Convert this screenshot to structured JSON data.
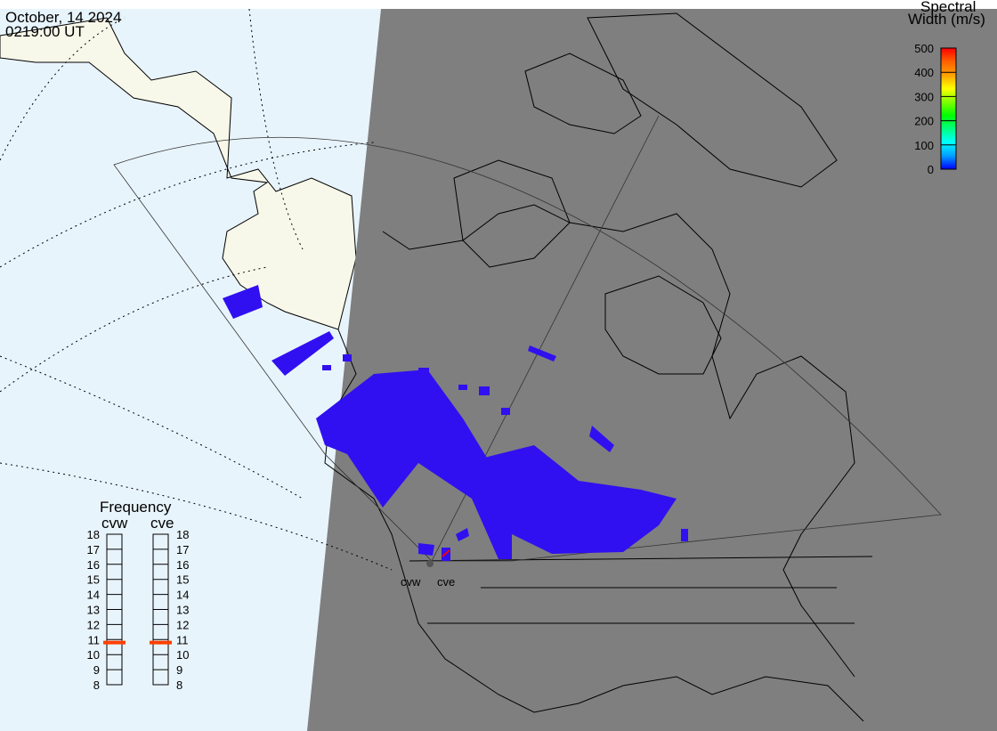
{
  "header": {
    "date": "October, 14 2024",
    "time": "0219:00 UT"
  },
  "colorbar": {
    "title_line1": "Spectral",
    "title_line2": "Width (m/s)",
    "ticks": [
      "0",
      "100",
      "200",
      "300",
      "400",
      "500"
    ],
    "colors": [
      "#0000ff",
      "#00a0ff",
      "#00ffff",
      "#00ff80",
      "#00ff00",
      "#80ff00",
      "#ffff00",
      "#ffa000",
      "#ff6000",
      "#ff0000"
    ]
  },
  "frequency": {
    "title": "Frequency",
    "radars": [
      {
        "name": "cvw",
        "value_mhz": 10.8
      },
      {
        "name": "cve",
        "value_mhz": 10.8
      }
    ],
    "ticks": [
      "18",
      "17",
      "16",
      "15",
      "14",
      "13",
      "12",
      "11",
      "10",
      "9",
      "8"
    ],
    "marker_color": "#ff4000"
  },
  "map": {
    "ocean_color": "#e8f4fc",
    "land_color": "#f8f8ea",
    "night_color": "#7f7f7f",
    "scatter_color": "#3010f0",
    "radar_labels": [
      "cvw",
      "cve"
    ]
  }
}
